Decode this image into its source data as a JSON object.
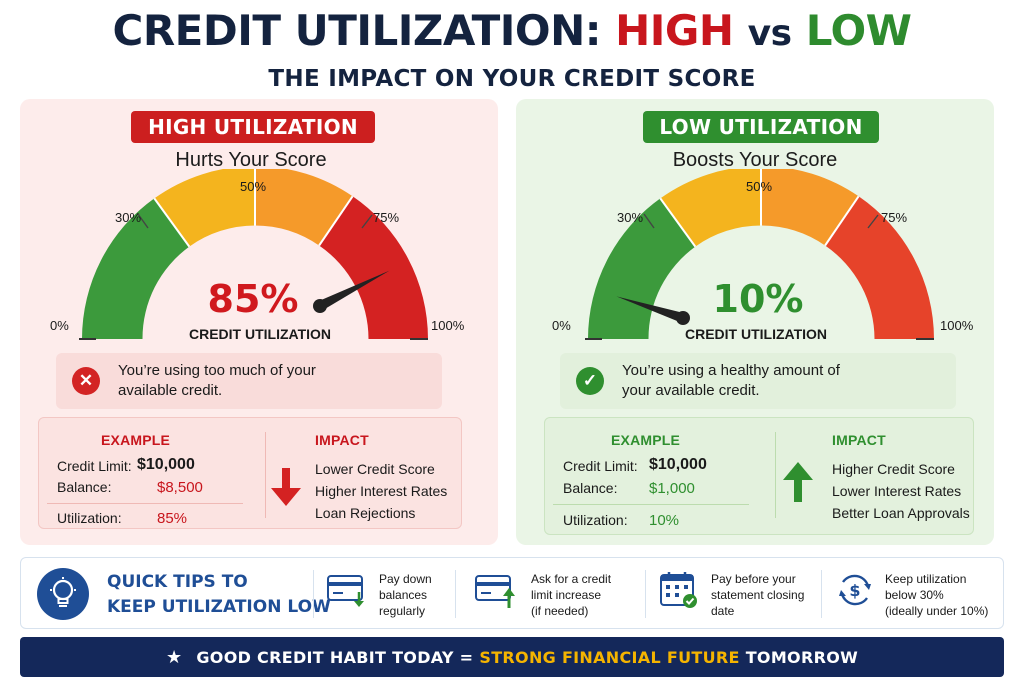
{
  "title": {
    "part1": "CREDIT UTILIZATION:",
    "high": "HIGH",
    "vs": "vs",
    "low": "LOW"
  },
  "subtitle": "THE IMPACT ON YOUR CREDIT SCORE",
  "high_panel": {
    "badge": "HIGH UTILIZATION",
    "subhead": "Hurts Your Score",
    "gauge": {
      "value_percent": 85,
      "display": "85%",
      "caption": "CREDIT UTILIZATION",
      "ticks": [
        "0%",
        "30%",
        "50%",
        "75%",
        "100%"
      ]
    },
    "status_text_1": "You’re using too much of your",
    "status_text_2": "available credit.",
    "example": {
      "title": "EXAMPLE",
      "limit_label": "Credit Limit:",
      "limit_value": "$10,000",
      "balance_label": "Balance:",
      "balance_value": "$8,500",
      "util_label": "Utilization:",
      "util_value": "85%"
    },
    "impact": {
      "title": "IMPACT",
      "items": [
        "Lower Credit Score",
        "Higher Interest Rates",
        "Loan Rejections"
      ]
    }
  },
  "low_panel": {
    "badge": "LOW UTILIZATION",
    "subhead": "Boosts Your Score",
    "gauge": {
      "value_percent": 10,
      "display": "10%",
      "caption": "CREDIT UTILIZATION",
      "ticks": [
        "0%",
        "30%",
        "50%",
        "75%",
        "100%"
      ]
    },
    "status_text_1": "You’re using a healthy amount of",
    "status_text_2": "your available credit.",
    "example": {
      "title": "EXAMPLE",
      "limit_label": "Credit Limit:",
      "limit_value": "$10,000",
      "balance_label": "Balance:",
      "balance_value": "$1,000",
      "util_label": "Utilization:",
      "util_value": "10%"
    },
    "impact": {
      "title": "IMPACT",
      "items": [
        "Higher Credit Score",
        "Lower Interest Rates",
        "Better Loan Approvals"
      ]
    }
  },
  "tips": {
    "title_1": "QUICK TIPS TO",
    "title_2": "KEEP UTILIZATION LOW",
    "items": [
      {
        "icon": "card-pay-icon",
        "lines": [
          "Pay down",
          "balances",
          "regularly"
        ]
      },
      {
        "icon": "card-limit-up-icon",
        "lines": [
          "Ask for a credit",
          "limit increase",
          "(if needed)"
        ]
      },
      {
        "icon": "calendar-icon",
        "lines": [
          "Pay before your",
          "statement closing",
          "date"
        ]
      },
      {
        "icon": "dollar-cycle-icon",
        "lines": [
          "Keep utilization",
          "below 30%",
          "(ideally under 10%)"
        ]
      }
    ]
  },
  "footer": {
    "part1": "GOOD CREDIT HABIT TODAY =",
    "highlight": "STRONG FINANCIAL FUTURE",
    "part2": "TOMORROW"
  },
  "colors": {
    "red": "#cc1f1f",
    "green": "#2f8f2f",
    "orange": "#f5a623",
    "yellow": "#f5b400",
    "navy": "#14285a",
    "blue": "#1f4e96"
  }
}
